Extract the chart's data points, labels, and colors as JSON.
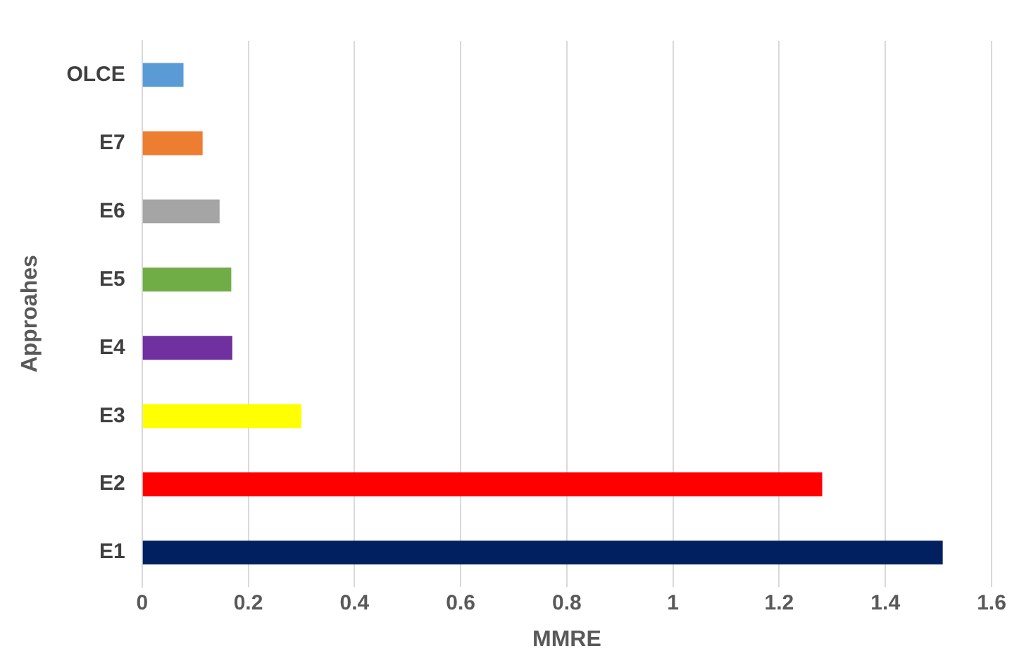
{
  "chart_data": {
    "type": "bar",
    "orientation": "horizontal",
    "xlabel": "MMRE",
    "ylabel": "Approahes",
    "categories": [
      "OLCE",
      "E7",
      "E6",
      "E5",
      "E4",
      "E3",
      "E2",
      "E1"
    ],
    "values": [
      0.078,
      0.114,
      0.146,
      0.168,
      0.17,
      0.3,
      1.281,
      1.508
    ],
    "colors": [
      "#5b9bd5",
      "#ed7d31",
      "#a5a5a5",
      "#70ad47",
      "#7030a0",
      "#ffff00",
      "#ff0000",
      "#002060"
    ],
    "xlim": [
      0,
      1.6
    ],
    "xticks": [
      0,
      0.2,
      0.4,
      0.6,
      0.8,
      1,
      1.2,
      1.4,
      1.6
    ],
    "grid": "x",
    "legend": false
  }
}
